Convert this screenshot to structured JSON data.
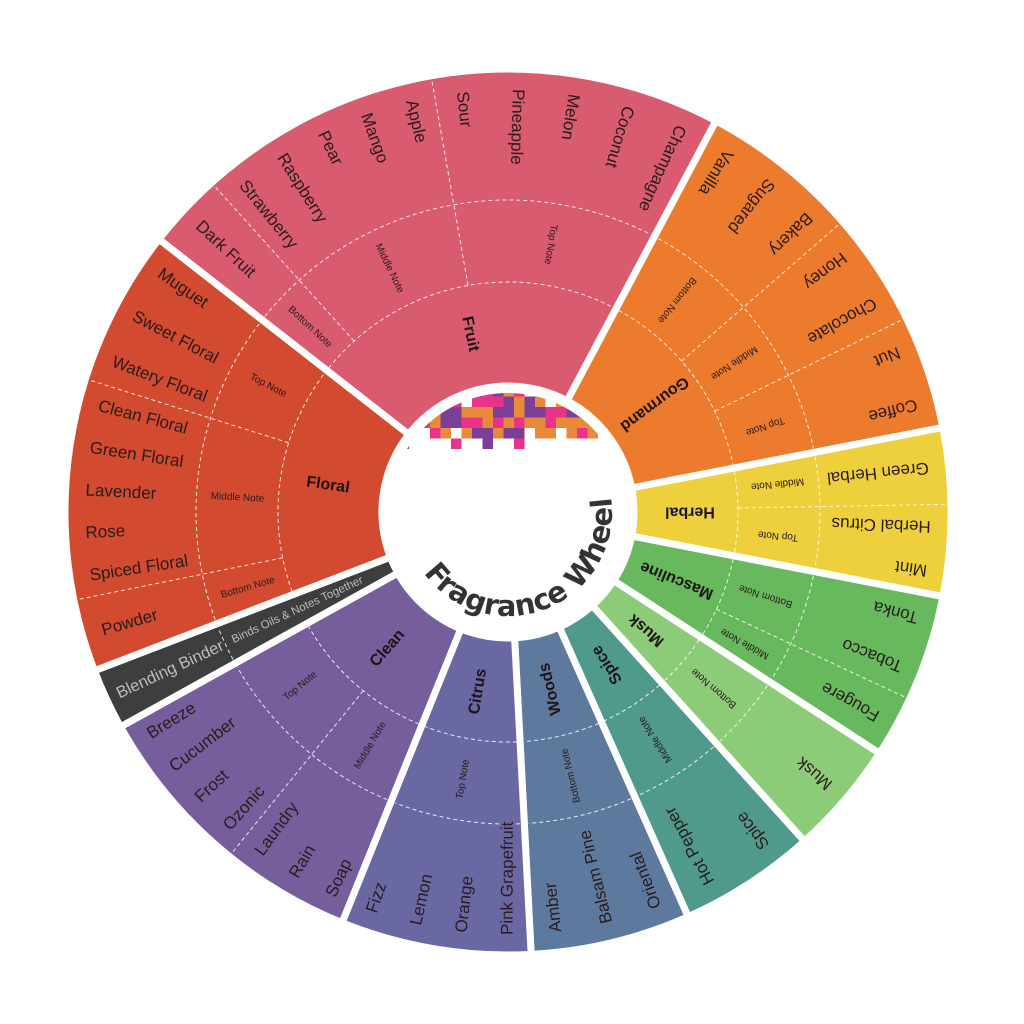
{
  "title": "Fragrance Wheel",
  "mosaic_colors": [
    "#7b3f98",
    "#e8338b",
    "#e78a3a"
  ],
  "categories": [
    {
      "name": "Fruit",
      "color": "#d85b6f",
      "notes": [
        {
          "label": "Bottom Note",
          "items": [
            "Dark Fruit"
          ]
        },
        {
          "label": "Middle Note",
          "items": [
            "Strawberry",
            "Raspberry",
            "Pear",
            "Mango",
            "Apple"
          ]
        },
        {
          "label": "Top Note",
          "items": [
            "Sour",
            "Pineapple",
            "Melon",
            "Coconut",
            "Champagne"
          ]
        }
      ]
    },
    {
      "name": "Gourmand",
      "color": "#ec7b2e",
      "notes": [
        {
          "label": "Bottom Note",
          "items": [
            "Vanilla",
            "Sugared",
            "Bakery"
          ]
        },
        {
          "label": "Middle Note",
          "items": [
            "Honey",
            "Chocolate"
          ]
        },
        {
          "label": "Top Note",
          "items": [
            "Nut",
            "Coffee"
          ]
        }
      ]
    },
    {
      "name": "Herbal",
      "color": "#edd03b",
      "notes": [
        {
          "label": "Middle Note",
          "items": [
            "Green Herbal"
          ]
        },
        {
          "label": "Top Note",
          "items": [
            "Herbal Citrus",
            "Mint"
          ]
        }
      ]
    },
    {
      "name": "Masculine",
      "color": "#68b85e",
      "notes": [
        {
          "label": "Bottom Note",
          "items": [
            "Tonka",
            "Tobacco"
          ]
        },
        {
          "label": "Middle Note",
          "items": [
            "Fougere"
          ]
        }
      ]
    },
    {
      "name": "Musk",
      "color": "#8ccb77",
      "notes": [
        {
          "label": "Bottom Note",
          "items": [
            "Musk"
          ]
        }
      ]
    },
    {
      "name": "Spice",
      "color": "#4f9a8b",
      "notes": [
        {
          "label": "Middle Note",
          "items": [
            "Spice",
            "Hot Pepper"
          ]
        }
      ]
    },
    {
      "name": "Woods",
      "color": "#5d7a9e",
      "notes": [
        {
          "label": "Bottom Note",
          "items": [
            "Oriental",
            "Balsam Pine",
            "Amber"
          ]
        }
      ]
    },
    {
      "name": "Citrus",
      "color": "#6968a3",
      "notes": [
        {
          "label": "Top Note",
          "items": [
            "Pink Grapefruit",
            "Orange",
            "Lemon",
            "Fizz"
          ]
        }
      ]
    },
    {
      "name": "Clean",
      "color": "#765e9c",
      "notes": [
        {
          "label": "Middle Note",
          "items": [
            "Soap",
            "Rain",
            "Laundry"
          ]
        },
        {
          "label": "Top Note",
          "items": [
            "Ozonic",
            "Frost",
            "Cucumber",
            "Breeze"
          ]
        }
      ]
    },
    {
      "name": "Blending Binder",
      "color": "#3d3f3e",
      "description": "Binds Oils & Notes Together",
      "notes": []
    },
    {
      "name": "Floral",
      "color": "#d24a2f",
      "notes": [
        {
          "label": "Bottom Note",
          "items": [
            "Powder"
          ]
        },
        {
          "label": "Middle Note",
          "items": [
            "Spiced Floral",
            "Rose",
            "Lavender",
            "Green Floral",
            "Clean Floral"
          ]
        },
        {
          "label": "Top Note",
          "items": [
            "Watery Floral",
            "Sweet Floral",
            "Muguet"
          ]
        }
      ]
    }
  ]
}
